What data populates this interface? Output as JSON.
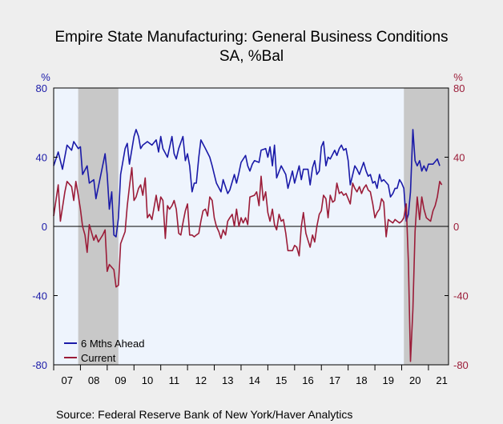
{
  "chart_data": {
    "type": "line",
    "title": "Empire State Manufacturing: General Business Conditions",
    "subtitle": "SA, %Bal",
    "left_axis_unit": "%",
    "right_axis_unit": "%",
    "y_ticks": [
      "80",
      "40",
      "0",
      "-40",
      "-80"
    ],
    "y_tick_values": [
      80,
      40,
      0,
      -40,
      -80
    ],
    "ylim": [
      -80,
      80
    ],
    "x_tick_labels": [
      "07",
      "08",
      "09",
      "10",
      "11",
      "12",
      "13",
      "14",
      "15",
      "16",
      "17",
      "18",
      "19",
      "20",
      "21"
    ],
    "x_tick_years": [
      2007,
      2008,
      2009,
      2010,
      2011,
      2012,
      2013,
      2014,
      2015,
      2016,
      2017,
      2018,
      2019,
      2020,
      2021
    ],
    "xlim": [
      2007.0,
      2021.75
    ],
    "recessions": [
      [
        2007.917,
        2009.417
      ],
      [
        2020.083,
        2021.75
      ]
    ],
    "zero_line": true,
    "legend_position": "bottom-left",
    "series": [
      {
        "name": "6 Mths Ahead",
        "color": "#1a1aa8",
        "points": [
          [
            2007.0,
            35
          ],
          [
            2007.17,
            43
          ],
          [
            2007.33,
            33
          ],
          [
            2007.5,
            47
          ],
          [
            2007.67,
            44
          ],
          [
            2007.75,
            49
          ],
          [
            2007.92,
            45
          ],
          [
            2008.0,
            46
          ],
          [
            2008.08,
            30
          ],
          [
            2008.25,
            35
          ],
          [
            2008.33,
            25
          ],
          [
            2008.5,
            27
          ],
          [
            2008.58,
            16
          ],
          [
            2008.75,
            29
          ],
          [
            2008.92,
            42
          ],
          [
            2009.0,
            30
          ],
          [
            2009.08,
            10
          ],
          [
            2009.17,
            20
          ],
          [
            2009.25,
            -5
          ],
          [
            2009.33,
            -6
          ],
          [
            2009.42,
            5
          ],
          [
            2009.5,
            30
          ],
          [
            2009.67,
            45
          ],
          [
            2009.75,
            48
          ],
          [
            2009.83,
            36
          ],
          [
            2010.0,
            52
          ],
          [
            2010.08,
            56
          ],
          [
            2010.17,
            52
          ],
          [
            2010.25,
            45
          ],
          [
            2010.33,
            47
          ],
          [
            2010.5,
            49
          ],
          [
            2010.67,
            47
          ],
          [
            2010.83,
            50
          ],
          [
            2010.92,
            43
          ],
          [
            2011.0,
            52
          ],
          [
            2011.08,
            45
          ],
          [
            2011.25,
            40
          ],
          [
            2011.42,
            52
          ],
          [
            2011.5,
            42
          ],
          [
            2011.58,
            39
          ],
          [
            2011.67,
            45
          ],
          [
            2011.83,
            52
          ],
          [
            2011.92,
            38
          ],
          [
            2012.0,
            42
          ],
          [
            2012.08,
            35
          ],
          [
            2012.17,
            20
          ],
          [
            2012.25,
            25
          ],
          [
            2012.33,
            25
          ],
          [
            2012.42,
            40
          ],
          [
            2012.5,
            50
          ],
          [
            2012.67,
            45
          ],
          [
            2012.83,
            40
          ],
          [
            2012.92,
            35
          ],
          [
            2013.0,
            30
          ],
          [
            2013.08,
            25
          ],
          [
            2013.25,
            20
          ],
          [
            2013.33,
            27
          ],
          [
            2013.5,
            19
          ],
          [
            2013.58,
            21
          ],
          [
            2013.75,
            30
          ],
          [
            2013.83,
            25
          ],
          [
            2013.92,
            31
          ],
          [
            2014.0,
            37
          ],
          [
            2014.17,
            41
          ],
          [
            2014.25,
            35
          ],
          [
            2014.33,
            32
          ],
          [
            2014.42,
            36
          ],
          [
            2014.5,
            38
          ],
          [
            2014.67,
            37
          ],
          [
            2014.75,
            44
          ],
          [
            2014.92,
            45
          ],
          [
            2015.0,
            40
          ],
          [
            2015.08,
            46
          ],
          [
            2015.17,
            35
          ],
          [
            2015.25,
            47
          ],
          [
            2015.33,
            28
          ],
          [
            2015.5,
            35
          ],
          [
            2015.67,
            30
          ],
          [
            2015.75,
            22
          ],
          [
            2015.92,
            32
          ],
          [
            2016.0,
            25
          ],
          [
            2016.17,
            35
          ],
          [
            2016.25,
            27
          ],
          [
            2016.33,
            33
          ],
          [
            2016.5,
            33
          ],
          [
            2016.58,
            24
          ],
          [
            2016.67,
            34
          ],
          [
            2016.75,
            38
          ],
          [
            2016.83,
            30
          ],
          [
            2016.92,
            32
          ],
          [
            2017.0,
            46
          ],
          [
            2017.08,
            49
          ],
          [
            2017.17,
            35
          ],
          [
            2017.25,
            40
          ],
          [
            2017.33,
            39
          ],
          [
            2017.5,
            44
          ],
          [
            2017.58,
            41
          ],
          [
            2017.67,
            45
          ],
          [
            2017.75,
            47
          ],
          [
            2017.83,
            44
          ],
          [
            2017.92,
            45
          ],
          [
            2018.0,
            38
          ],
          [
            2018.08,
            24
          ],
          [
            2018.25,
            35
          ],
          [
            2018.33,
            33
          ],
          [
            2018.42,
            30
          ],
          [
            2018.58,
            37
          ],
          [
            2018.67,
            32
          ],
          [
            2018.75,
            29
          ],
          [
            2018.83,
            30
          ],
          [
            2018.92,
            25
          ],
          [
            2019.0,
            26
          ],
          [
            2019.08,
            22
          ],
          [
            2019.17,
            30
          ],
          [
            2019.25,
            26
          ],
          [
            2019.33,
            27
          ],
          [
            2019.5,
            24
          ],
          [
            2019.58,
            17
          ],
          [
            2019.67,
            19
          ],
          [
            2019.75,
            22
          ],
          [
            2019.83,
            22
          ],
          [
            2019.92,
            27
          ],
          [
            2020.0,
            25
          ],
          [
            2020.08,
            22
          ],
          [
            2020.17,
            3
          ],
          [
            2020.25,
            7
          ],
          [
            2020.33,
            20
          ],
          [
            2020.42,
            56
          ],
          [
            2020.5,
            38
          ],
          [
            2020.58,
            35
          ],
          [
            2020.67,
            38
          ],
          [
            2020.75,
            32
          ],
          [
            2020.83,
            35
          ],
          [
            2020.92,
            32
          ],
          [
            2021.0,
            36
          ],
          [
            2021.17,
            36
          ],
          [
            2021.33,
            39
          ],
          [
            2021.42,
            35
          ]
        ]
      },
      {
        "name": "Current",
        "color": "#9b1c38",
        "points": [
          [
            2007.0,
            6
          ],
          [
            2007.17,
            24
          ],
          [
            2007.25,
            3
          ],
          [
            2007.42,
            20
          ],
          [
            2007.5,
            26
          ],
          [
            2007.67,
            23
          ],
          [
            2007.75,
            15
          ],
          [
            2007.83,
            26
          ],
          [
            2007.92,
            18
          ],
          [
            2008.0,
            10
          ],
          [
            2008.08,
            0
          ],
          [
            2008.17,
            -5
          ],
          [
            2008.25,
            -15
          ],
          [
            2008.33,
            1
          ],
          [
            2008.5,
            -8
          ],
          [
            2008.58,
            -5
          ],
          [
            2008.67,
            -9
          ],
          [
            2008.83,
            -5
          ],
          [
            2008.92,
            -2
          ],
          [
            2009.0,
            -26
          ],
          [
            2009.08,
            -22
          ],
          [
            2009.25,
            -25
          ],
          [
            2009.33,
            -35
          ],
          [
            2009.42,
            -34
          ],
          [
            2009.5,
            -10
          ],
          [
            2009.67,
            -3
          ],
          [
            2009.75,
            12
          ],
          [
            2009.83,
            23
          ],
          [
            2009.92,
            34
          ],
          [
            2010.0,
            15
          ],
          [
            2010.08,
            17
          ],
          [
            2010.17,
            22
          ],
          [
            2010.25,
            24
          ],
          [
            2010.33,
            18
          ],
          [
            2010.42,
            28
          ],
          [
            2010.5,
            5
          ],
          [
            2010.58,
            7
          ],
          [
            2010.67,
            4
          ],
          [
            2010.83,
            18
          ],
          [
            2010.92,
            9
          ],
          [
            2011.0,
            17
          ],
          [
            2011.08,
            15
          ],
          [
            2011.17,
            -7
          ],
          [
            2011.25,
            12
          ],
          [
            2011.33,
            10
          ],
          [
            2011.42,
            12
          ],
          [
            2011.5,
            15
          ],
          [
            2011.58,
            10
          ],
          [
            2011.67,
            -4
          ],
          [
            2011.75,
            -5
          ],
          [
            2011.83,
            2
          ],
          [
            2011.92,
            9
          ],
          [
            2012.0,
            13
          ],
          [
            2012.08,
            -5
          ],
          [
            2012.17,
            -5
          ],
          [
            2012.25,
            -6
          ],
          [
            2012.33,
            -5
          ],
          [
            2012.42,
            -4
          ],
          [
            2012.5,
            3
          ],
          [
            2012.58,
            9
          ],
          [
            2012.67,
            10
          ],
          [
            2012.75,
            6
          ],
          [
            2012.83,
            17
          ],
          [
            2012.92,
            15
          ],
          [
            2013.0,
            5
          ],
          [
            2013.08,
            0
          ],
          [
            2013.17,
            -3
          ],
          [
            2013.25,
            -7
          ],
          [
            2013.33,
            -2
          ],
          [
            2013.42,
            -5
          ],
          [
            2013.5,
            3
          ],
          [
            2013.58,
            5
          ],
          [
            2013.67,
            7
          ],
          [
            2013.75,
            0
          ],
          [
            2013.83,
            10
          ],
          [
            2013.92,
            0
          ],
          [
            2014.0,
            5
          ],
          [
            2014.08,
            2
          ],
          [
            2014.17,
            5
          ],
          [
            2014.25,
            1
          ],
          [
            2014.33,
            17
          ],
          [
            2014.5,
            18
          ],
          [
            2014.58,
            20
          ],
          [
            2014.67,
            12
          ],
          [
            2014.75,
            29
          ],
          [
            2014.83,
            15
          ],
          [
            2014.92,
            20
          ],
          [
            2015.0,
            8
          ],
          [
            2015.08,
            3
          ],
          [
            2015.17,
            10
          ],
          [
            2015.25,
            1
          ],
          [
            2015.33,
            -2
          ],
          [
            2015.42,
            7
          ],
          [
            2015.5,
            3
          ],
          [
            2015.58,
            4
          ],
          [
            2015.67,
            -4
          ],
          [
            2015.75,
            -14
          ],
          [
            2015.83,
            -14
          ],
          [
            2015.92,
            -14
          ],
          [
            2016.0,
            -11
          ],
          [
            2016.08,
            -12
          ],
          [
            2016.17,
            -17
          ],
          [
            2016.25,
            0
          ],
          [
            2016.33,
            8
          ],
          [
            2016.42,
            -4
          ],
          [
            2016.5,
            -8
          ],
          [
            2016.58,
            -12
          ],
          [
            2016.67,
            -5
          ],
          [
            2016.75,
            -9
          ],
          [
            2016.83,
            0
          ],
          [
            2016.92,
            7
          ],
          [
            2017.0,
            9
          ],
          [
            2017.08,
            18
          ],
          [
            2017.17,
            16
          ],
          [
            2017.25,
            5
          ],
          [
            2017.33,
            18
          ],
          [
            2017.42,
            14
          ],
          [
            2017.5,
            15
          ],
          [
            2017.58,
            25
          ],
          [
            2017.67,
            19
          ],
          [
            2017.75,
            20
          ],
          [
            2017.83,
            18
          ],
          [
            2017.92,
            19
          ],
          [
            2018.0,
            16
          ],
          [
            2018.08,
            13
          ],
          [
            2018.17,
            25
          ],
          [
            2018.25,
            22
          ],
          [
            2018.33,
            20
          ],
          [
            2018.42,
            23
          ],
          [
            2018.5,
            19
          ],
          [
            2018.58,
            22
          ],
          [
            2018.67,
            24
          ],
          [
            2018.75,
            21
          ],
          [
            2018.83,
            20
          ],
          [
            2018.92,
            13
          ],
          [
            2019.0,
            5
          ],
          [
            2019.08,
            8
          ],
          [
            2019.17,
            10
          ],
          [
            2019.25,
            16
          ],
          [
            2019.33,
            14
          ],
          [
            2019.42,
            -6
          ],
          [
            2019.5,
            4
          ],
          [
            2019.58,
            3
          ],
          [
            2019.67,
            2
          ],
          [
            2019.75,
            4
          ],
          [
            2019.83,
            3
          ],
          [
            2019.92,
            2
          ],
          [
            2020.0,
            3
          ],
          [
            2020.08,
            5
          ],
          [
            2020.17,
            13
          ],
          [
            2020.25,
            -21
          ],
          [
            2020.33,
            -78
          ],
          [
            2020.42,
            -48
          ],
          [
            2020.5,
            -3
          ],
          [
            2020.58,
            17
          ],
          [
            2020.67,
            4
          ],
          [
            2020.75,
            17
          ],
          [
            2020.83,
            10
          ],
          [
            2020.92,
            5
          ],
          [
            2021.0,
            4
          ],
          [
            2021.08,
            3
          ],
          [
            2021.17,
            9
          ],
          [
            2021.25,
            12
          ],
          [
            2021.33,
            17
          ],
          [
            2021.42,
            26
          ],
          [
            2021.5,
            24
          ]
        ]
      }
    ],
    "source": "Source:  Federal Reserve Bank of New York/Haver Analytics"
  },
  "colors": {
    "page_background": "#eeeeee",
    "plot_background": "#eef4fd",
    "recession_shade": "#c8c8c8",
    "left_axis": "#1a1aa8",
    "right_axis": "#9b1c38"
  }
}
